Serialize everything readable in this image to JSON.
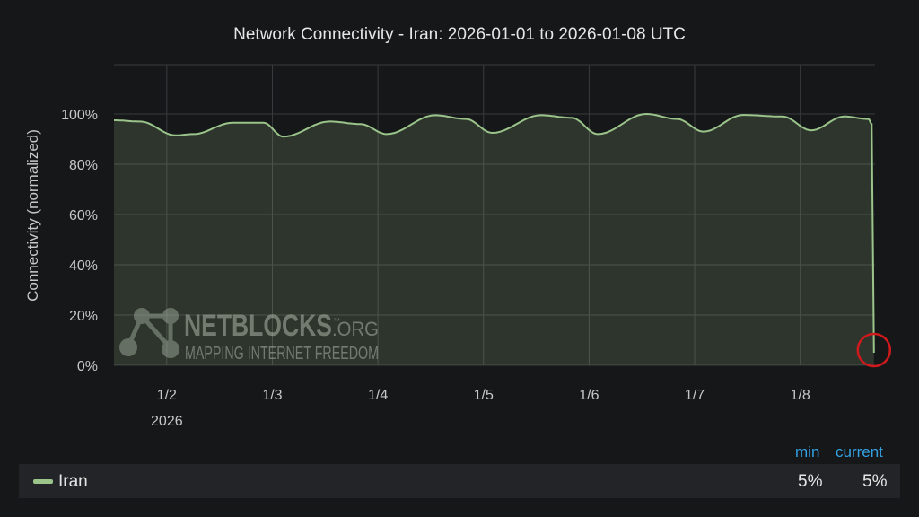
{
  "chart_data": {
    "type": "area",
    "title": "Network Connectivity - Iran: 2026-01-01 to 2026-01-08 UTC",
    "ylabel": "Connectivity (normalized)",
    "xlabel": "",
    "ylim": [
      0,
      100
    ],
    "xlim": [
      "2026-01-01T12:00",
      "2026-01-08T17:00"
    ],
    "y_ticks": [
      "0%",
      "20%",
      "40%",
      "60%",
      "80%",
      "100%"
    ],
    "x_ticks": [
      {
        "date": "2026-01-02",
        "label": "1/2",
        "sublabel": "2026"
      },
      {
        "date": "2026-01-03",
        "label": "1/3"
      },
      {
        "date": "2026-01-04",
        "label": "1/4"
      },
      {
        "date": "2026-01-05",
        "label": "1/5"
      },
      {
        "date": "2026-01-06",
        "label": "1/6"
      },
      {
        "date": "2026-01-07",
        "label": "1/7"
      },
      {
        "date": "2026-01-08",
        "label": "1/8"
      }
    ],
    "grid": true,
    "series": [
      {
        "name": "Iran",
        "color": "#9ac48a",
        "points": [
          [
            "2026-01-01T12:00",
            97.5
          ],
          [
            "2026-01-01T18:00",
            97
          ],
          [
            "2026-01-02T02:00",
            91.5
          ],
          [
            "2026-01-02T06:00",
            92
          ],
          [
            "2026-01-02T15:00",
            96.5
          ],
          [
            "2026-01-02T22:00",
            96.5
          ],
          [
            "2026-01-03T02:30",
            91
          ],
          [
            "2026-01-03T13:00",
            97
          ],
          [
            "2026-01-03T20:00",
            96
          ],
          [
            "2026-01-04T02:00",
            92
          ],
          [
            "2026-01-04T13:00",
            99.5
          ],
          [
            "2026-01-04T20:00",
            98
          ],
          [
            "2026-01-05T02:00",
            92.5
          ],
          [
            "2026-01-05T13:00",
            99.5
          ],
          [
            "2026-01-05T20:00",
            98.5
          ],
          [
            "2026-01-06T02:00",
            92
          ],
          [
            "2026-01-06T13:00",
            100
          ],
          [
            "2026-01-06T20:00",
            98
          ],
          [
            "2026-01-07T02:00",
            93
          ],
          [
            "2026-01-07T11:00",
            99.6
          ],
          [
            "2026-01-07T20:00",
            99
          ],
          [
            "2026-01-08T02:30",
            93.5
          ],
          [
            "2026-01-08T10:00",
            99
          ],
          [
            "2026-01-08T15:30",
            98
          ],
          [
            "2026-01-08T16:15",
            96
          ],
          [
            "2026-01-08T16:45",
            5
          ]
        ]
      }
    ],
    "annotation": {
      "type": "circle",
      "color": "#d0191c",
      "target": "last point"
    }
  },
  "watermark": {
    "brand": "NETBLOCKS",
    "tld": ".ORG",
    "tm": "™",
    "tagline": "MAPPING INTERNET FREEDOM"
  },
  "legend": {
    "headers": {
      "min": "min",
      "current": "current"
    },
    "rows": [
      {
        "name": "Iran",
        "min": "5%",
        "current": "5%"
      }
    ]
  }
}
